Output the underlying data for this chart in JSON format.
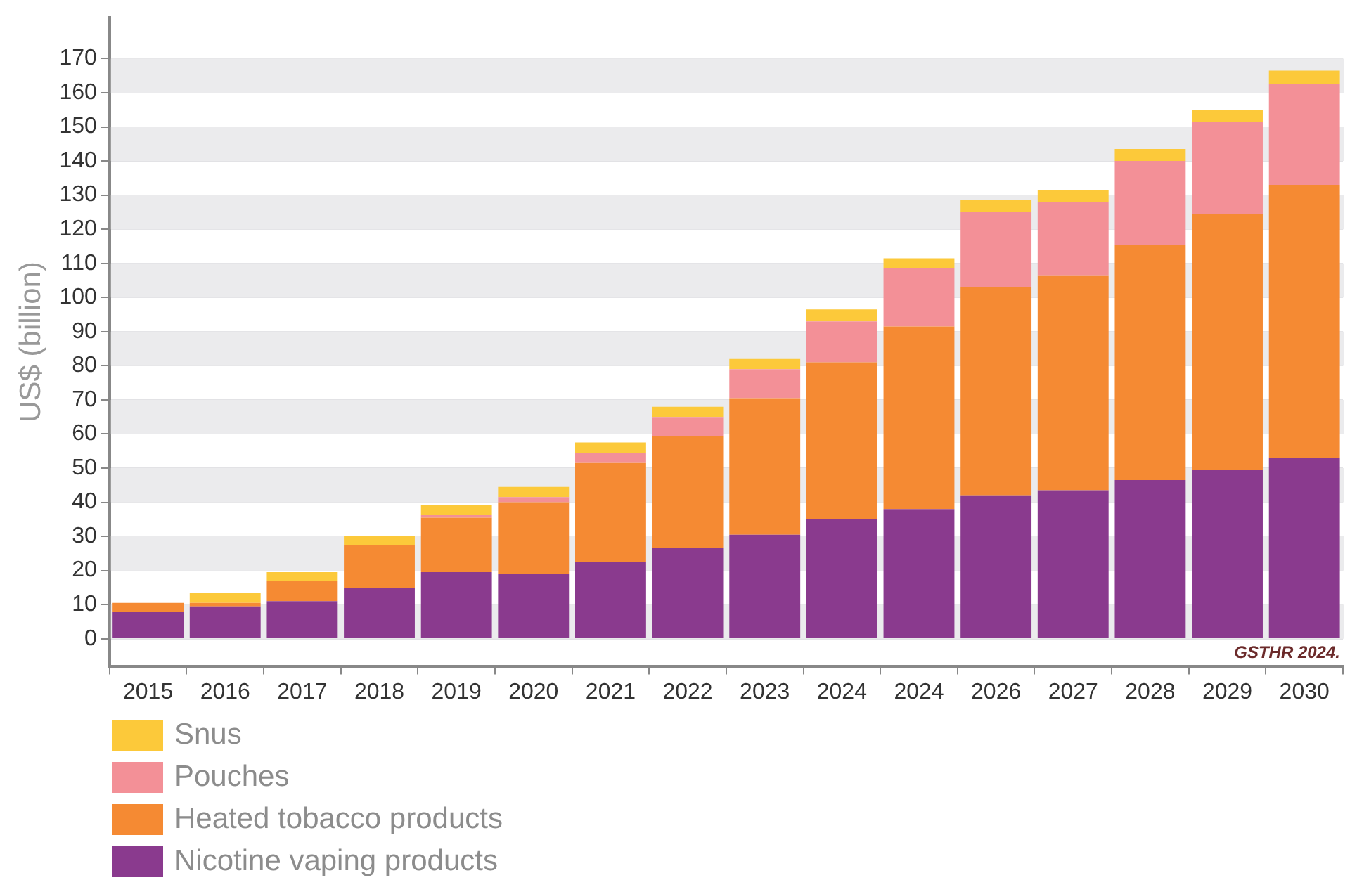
{
  "chart_data": {
    "type": "bar",
    "stacked": true,
    "ylabel": "US$ (billion)",
    "categories": [
      "2015",
      "2016",
      "2017",
      "2018",
      "2019",
      "2020",
      "2021",
      "2022",
      "2023",
      "2024",
      "2024",
      "2026",
      "2027",
      "2028",
      "2029",
      "2030"
    ],
    "series": [
      {
        "name": "Nicotine vaping products",
        "color": "#8a3a8e",
        "values": [
          8,
          9.5,
          11,
          15,
          19.5,
          19,
          22.5,
          26.5,
          30.5,
          35,
          38,
          42,
          43.5,
          46.5,
          49.5,
          53
        ]
      },
      {
        "name": "Heated tobacco products",
        "color": "#f58a33",
        "values": [
          2.5,
          1,
          6,
          12.5,
          16,
          21,
          29,
          33,
          40,
          46,
          53.5,
          61,
          63,
          69,
          75,
          80
        ]
      },
      {
        "name": "Pouches",
        "color": "#f39097",
        "values": [
          0,
          0,
          0,
          0,
          0.8,
          1.5,
          3,
          5.5,
          8.5,
          12,
          17,
          22,
          21.5,
          24.5,
          27,
          29.5
        ]
      },
      {
        "name": "Snus",
        "color": "#fcc93a",
        "values": [
          0,
          3,
          2.5,
          2.5,
          3,
          3,
          3,
          3,
          3,
          3.5,
          3,
          3.5,
          3.5,
          3.5,
          3.5,
          4
        ]
      }
    ],
    "ylim": [
      -8,
      182
    ],
    "yticks": [
      0,
      10,
      20,
      30,
      40,
      50,
      60,
      70,
      80,
      90,
      100,
      110,
      120,
      130,
      140,
      150,
      160,
      170
    ],
    "grid": "y",
    "legend": "bottom left",
    "annotations": [
      "GSTHR 2024."
    ]
  }
}
